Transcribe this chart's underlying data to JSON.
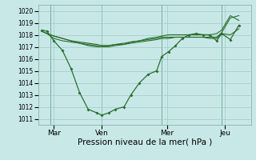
{
  "background_color": "#c8e8e8",
  "grid_color": "#a0c8c8",
  "line_color": "#2a6e2a",
  "ylim": [
    1010.5,
    1020.5
  ],
  "yticks": [
    1011,
    1012,
    1013,
    1014,
    1015,
    1016,
    1017,
    1018,
    1019,
    1020
  ],
  "xlim": [
    -0.2,
    12.2
  ],
  "day_labels": [
    "Mar",
    "Ven",
    "Mer",
    "Jeu"
  ],
  "day_positions": [
    0.7,
    3.5,
    7.3,
    10.7
  ],
  "vline_positions": [
    0.5,
    3.5,
    7.0,
    10.5
  ],
  "xlabel": "Pression niveau de la mer( hPa )",
  "line1_x": [
    0.0,
    0.3,
    0.7,
    1.2,
    1.7,
    2.2,
    2.7,
    3.2,
    3.5,
    3.9,
    4.3,
    4.8,
    5.2,
    5.7,
    6.2,
    6.7,
    7.0,
    7.4,
    7.8,
    8.2,
    8.6,
    9.0,
    9.4,
    9.8,
    10.2,
    10.5,
    11.0,
    11.5
  ],
  "line1_y": [
    1018.4,
    1018.3,
    1017.5,
    1016.7,
    1015.2,
    1013.2,
    1011.8,
    1011.5,
    1011.3,
    1011.5,
    1011.8,
    1012.0,
    1013.0,
    1014.0,
    1014.7,
    1015.0,
    1016.2,
    1016.6,
    1017.1,
    1017.7,
    1018.0,
    1018.1,
    1018.0,
    1018.0,
    1017.5,
    1018.1,
    1017.6,
    1018.8
  ],
  "line2_x": [
    0.0,
    0.3,
    0.7,
    1.2,
    1.7,
    2.2,
    2.7,
    3.2,
    3.5,
    3.9,
    4.3,
    4.8,
    5.2,
    5.7,
    6.2,
    6.7,
    7.0,
    7.4,
    7.8,
    8.2,
    8.6,
    9.0,
    9.4,
    9.8,
    10.2,
    10.5,
    11.0,
    11.5
  ],
  "line2_y": [
    1018.3,
    1018.1,
    1017.7,
    1017.5,
    1017.4,
    1017.3,
    1017.2,
    1017.1,
    1017.1,
    1017.1,
    1017.2,
    1017.2,
    1017.3,
    1017.4,
    1017.5,
    1017.6,
    1017.7,
    1017.7,
    1017.8,
    1017.8,
    1017.8,
    1017.8,
    1017.8,
    1017.7,
    1017.7,
    1018.1,
    1018.0,
    1018.5
  ],
  "line3_x": [
    0.0,
    0.3,
    0.7,
    1.2,
    1.7,
    2.2,
    2.7,
    3.2,
    3.5,
    3.9,
    4.3,
    4.8,
    5.2,
    5.7,
    6.2,
    6.7,
    7.0,
    7.4,
    7.8,
    8.2,
    8.6,
    9.0,
    9.4,
    9.8,
    10.2,
    10.5,
    11.0,
    11.5
  ],
  "line3_y": [
    1018.3,
    1018.1,
    1017.9,
    1017.7,
    1017.5,
    1017.4,
    1017.3,
    1017.2,
    1017.1,
    1017.1,
    1017.2,
    1017.3,
    1017.4,
    1017.5,
    1017.6,
    1017.7,
    1017.8,
    1017.8,
    1017.8,
    1017.8,
    1017.8,
    1017.8,
    1017.8,
    1017.8,
    1017.8,
    1018.2,
    1019.4,
    1019.6
  ],
  "line4_x": [
    0.0,
    0.3,
    0.7,
    1.2,
    1.7,
    2.2,
    2.7,
    3.2,
    3.5,
    3.9,
    4.3,
    4.8,
    5.2,
    5.7,
    6.2,
    6.7,
    7.0,
    7.4,
    7.8,
    8.2,
    8.6,
    9.0,
    9.4,
    9.8,
    10.2,
    10.5,
    11.0,
    11.5
  ],
  "line4_y": [
    1018.3,
    1018.1,
    1017.9,
    1017.7,
    1017.5,
    1017.3,
    1017.1,
    1017.0,
    1017.0,
    1017.0,
    1017.1,
    1017.2,
    1017.4,
    1017.5,
    1017.7,
    1017.8,
    1017.9,
    1018.0,
    1018.0,
    1018.0,
    1018.0,
    1018.0,
    1018.0,
    1018.0,
    1018.1,
    1018.4,
    1019.6,
    1019.2
  ]
}
